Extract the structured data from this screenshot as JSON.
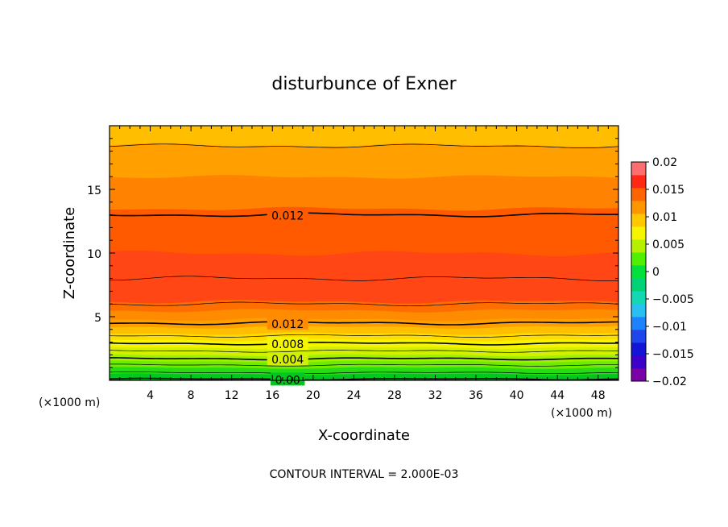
{
  "chart_data": {
    "type": "heatmap",
    "subtype": "filled-contour",
    "title": "disturbunce of Exner",
    "xlabel": "X-coordinate",
    "ylabel": "Z-coordinate",
    "x_unit_left": "(×1000 m)",
    "x_unit_right": "(×1000 m)",
    "xlim": [
      0,
      50
    ],
    "ylim": [
      0,
      20
    ],
    "x_ticks": [
      4,
      8,
      12,
      16,
      20,
      24,
      28,
      32,
      36,
      40,
      44,
      48
    ],
    "y_ticks": [
      5,
      10,
      15
    ],
    "footnote": "CONTOUR INTERVAL = 2.000E-03",
    "colorbar": {
      "labels": [
        "0.02",
        "0.015",
        "0.01",
        "0.005",
        "0",
        "−0.005",
        "−0.01",
        "−0.015",
        "−0.02"
      ],
      "levels": [
        -0.02,
        -0.0175,
        -0.015,
        -0.0125,
        -0.01,
        -0.0075,
        -0.005,
        -0.0025,
        0,
        0.0025,
        0.005,
        0.0075,
        0.01,
        0.0125,
        0.015,
        0.0175,
        0.02
      ],
      "colors": [
        "#7a00a8",
        "#3c00c8",
        "#1414d8",
        "#1e46ec",
        "#1e82ff",
        "#28c0f0",
        "#14d8b4",
        "#00d278",
        "#00e13c",
        "#50f000",
        "#b4f000",
        "#f5f500",
        "#ffc800",
        "#ff9600",
        "#ff6400",
        "#ff2814",
        "#ff6e6e"
      ]
    },
    "fill_bands": [
      {
        "z": 0,
        "color": "#00c81e"
      },
      {
        "z": 0.5,
        "color": "#28dc14"
      },
      {
        "z": 1.0,
        "color": "#6eec00"
      },
      {
        "z": 1.5,
        "color": "#a0f000"
      },
      {
        "z": 2.0,
        "color": "#d2f000"
      },
      {
        "z": 2.6,
        "color": "#f5f500"
      },
      {
        "z": 3.2,
        "color": "#ffdc00"
      },
      {
        "z": 3.7,
        "color": "#ffbe00"
      },
      {
        "z": 4.2,
        "color": "#ffa000"
      },
      {
        "z": 4.8,
        "color": "#ff8c00"
      },
      {
        "z": 5.5,
        "color": "#ff6e00"
      },
      {
        "z": 6.2,
        "color": "#ff4614"
      },
      {
        "z": 10.0,
        "color": "#ff5a00"
      },
      {
        "z": 13.5,
        "color": "#ff8200"
      },
      {
        "z": 16.0,
        "color": "#ffa000"
      },
      {
        "z": 18.5,
        "color": "#ffbe00"
      }
    ],
    "contour_lines": [
      {
        "z": 0.1,
        "bold": true
      },
      {
        "z": 0.6,
        "bold": false
      },
      {
        "z": 1.2,
        "bold": false
      },
      {
        "z": 1.7,
        "bold": true
      },
      {
        "z": 2.3,
        "bold": false
      },
      {
        "z": 2.9,
        "bold": true
      },
      {
        "z": 3.5,
        "bold": false
      },
      {
        "z": 4.5,
        "bold": true
      },
      {
        "z": 6.0,
        "bold": false
      },
      {
        "z": 8.0,
        "bold": false
      },
      {
        "z": 13.0,
        "bold": true
      },
      {
        "z": 18.4,
        "bold": false
      }
    ],
    "contour_labels": [
      {
        "text": "0.00",
        "x": 17.5,
        "z": 0.1
      },
      {
        "text": "0.004",
        "x": 17.5,
        "z": 1.7
      },
      {
        "text": "0.008",
        "x": 17.5,
        "z": 2.9
      },
      {
        "text": "0.012",
        "x": 17.5,
        "z": 4.5
      },
      {
        "text": "0.012",
        "x": 17.5,
        "z": 13.0
      }
    ]
  }
}
